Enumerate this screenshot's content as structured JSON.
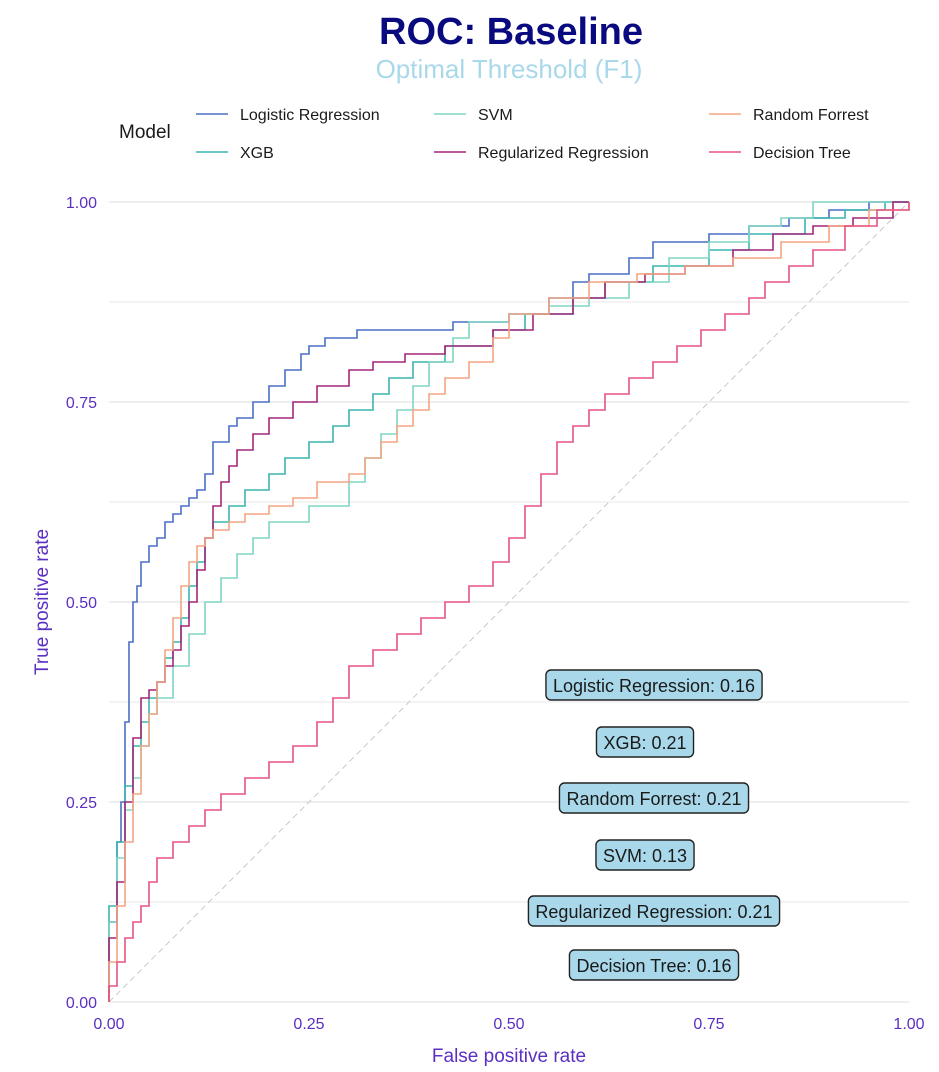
{
  "chart_data": {
    "type": "line",
    "title": "ROC: Baseline",
    "subtitle": "Optimal Threshold (F1)",
    "xlabel": "False positive rate",
    "ylabel": "True positive rate",
    "xlim": [
      0,
      1
    ],
    "ylim": [
      0,
      1
    ],
    "x_ticks": [
      "0.00",
      "0.25",
      "0.50",
      "0.75",
      "1.00"
    ],
    "y_ticks": [
      "0.00",
      "0.25",
      "0.50",
      "0.75",
      "1.00"
    ],
    "grid": true,
    "legend": {
      "title": "Model",
      "position": "top",
      "entries": [
        "Logistic Regression",
        "XGB",
        "SVM",
        "Regularized Regression",
        "Random Forrest",
        "Decision Tree"
      ]
    },
    "colors": {
      "title": "#0a0a80",
      "subtitle": "#a8d8ea",
      "axis": "#5a2fc2",
      "grid": "#e3e3e3",
      "diagonal": "#c8c8c8",
      "annotation_fill": "#a8d8ea"
    },
    "series": [
      {
        "name": "Logistic Regression",
        "color": "#4a6fc7",
        "x": [
          0,
          0.0,
          0.01,
          0.01,
          0.015,
          0.02,
          0.025,
          0.03,
          0.035,
          0.04,
          0.05,
          0.06,
          0.07,
          0.08,
          0.09,
          0.1,
          0.11,
          0.12,
          0.13,
          0.15,
          0.16,
          0.18,
          0.2,
          0.22,
          0.24,
          0.25,
          0.27,
          0.31,
          0.43,
          0.5,
          0.55,
          0.58,
          0.6,
          0.65,
          0.68,
          0.75,
          0.8,
          0.85,
          0.9,
          0.95,
          0.99,
          1
        ],
        "y": [
          0,
          0.1,
          0.15,
          0.2,
          0.25,
          0.35,
          0.45,
          0.5,
          0.52,
          0.55,
          0.57,
          0.58,
          0.6,
          0.61,
          0.62,
          0.63,
          0.64,
          0.66,
          0.7,
          0.72,
          0.73,
          0.75,
          0.77,
          0.79,
          0.81,
          0.82,
          0.83,
          0.84,
          0.85,
          0.86,
          0.88,
          0.9,
          0.91,
          0.93,
          0.95,
          0.96,
          0.97,
          0.98,
          0.99,
          1,
          1,
          1
        ]
      },
      {
        "name": "XGB",
        "color": "#3ab5b0",
        "x": [
          0,
          0.0,
          0.01,
          0.02,
          0.03,
          0.04,
          0.05,
          0.06,
          0.07,
          0.08,
          0.09,
          0.1,
          0.11,
          0.12,
          0.13,
          0.15,
          0.17,
          0.2,
          0.22,
          0.25,
          0.28,
          0.3,
          0.33,
          0.35,
          0.38,
          0.42,
          0.48,
          0.52,
          0.58,
          0.62,
          0.68,
          0.75,
          0.8,
          0.87,
          0.92,
          0.97,
          1
        ],
        "y": [
          0,
          0.12,
          0.2,
          0.27,
          0.32,
          0.35,
          0.38,
          0.4,
          0.43,
          0.45,
          0.48,
          0.52,
          0.55,
          0.58,
          0.6,
          0.62,
          0.64,
          0.66,
          0.68,
          0.7,
          0.72,
          0.74,
          0.76,
          0.78,
          0.8,
          0.82,
          0.84,
          0.86,
          0.88,
          0.9,
          0.92,
          0.94,
          0.96,
          0.98,
          0.99,
          1,
          1
        ]
      },
      {
        "name": "SVM",
        "color": "#7fd6c2",
        "x": [
          0,
          0.0,
          0.01,
          0.02,
          0.03,
          0.04,
          0.05,
          0.06,
          0.08,
          0.1,
          0.12,
          0.14,
          0.16,
          0.18,
          0.2,
          0.25,
          0.3,
          0.32,
          0.34,
          0.36,
          0.38,
          0.4,
          0.43,
          0.45,
          0.5,
          0.55,
          0.6,
          0.65,
          0.7,
          0.75,
          0.8,
          0.84,
          0.88,
          0.95,
          1
        ],
        "y": [
          0,
          0.1,
          0.18,
          0.24,
          0.28,
          0.32,
          0.36,
          0.38,
          0.42,
          0.46,
          0.5,
          0.53,
          0.56,
          0.58,
          0.6,
          0.62,
          0.65,
          0.68,
          0.71,
          0.74,
          0.77,
          0.8,
          0.83,
          0.85,
          0.86,
          0.87,
          0.88,
          0.9,
          0.93,
          0.95,
          0.97,
          0.98,
          1,
          1,
          1
        ]
      },
      {
        "name": "Regularized Regression",
        "color": "#a3267a",
        "x": [
          0,
          0.0,
          0.01,
          0.02,
          0.03,
          0.04,
          0.05,
          0.06,
          0.07,
          0.08,
          0.09,
          0.1,
          0.11,
          0.12,
          0.13,
          0.14,
          0.15,
          0.16,
          0.18,
          0.2,
          0.23,
          0.26,
          0.3,
          0.33,
          0.37,
          0.42,
          0.48,
          0.53,
          0.58,
          0.62,
          0.67,
          0.72,
          0.78,
          0.83,
          0.88,
          0.93,
          0.98,
          1
        ],
        "y": [
          0,
          0.08,
          0.15,
          0.25,
          0.33,
          0.38,
          0.39,
          0.4,
          0.42,
          0.44,
          0.47,
          0.5,
          0.54,
          0.58,
          0.62,
          0.65,
          0.67,
          0.69,
          0.71,
          0.73,
          0.75,
          0.77,
          0.79,
          0.8,
          0.81,
          0.82,
          0.84,
          0.86,
          0.88,
          0.9,
          0.91,
          0.92,
          0.94,
          0.96,
          0.97,
          0.98,
          1,
          1
        ]
      },
      {
        "name": "Random Forrest",
        "color": "#f4a582",
        "x": [
          0,
          0.0,
          0.01,
          0.02,
          0.03,
          0.04,
          0.05,
          0.06,
          0.07,
          0.08,
          0.09,
          0.1,
          0.11,
          0.12,
          0.13,
          0.15,
          0.17,
          0.2,
          0.23,
          0.26,
          0.3,
          0.32,
          0.34,
          0.36,
          0.38,
          0.4,
          0.42,
          0.45,
          0.48,
          0.5,
          0.55,
          0.6,
          0.66,
          0.72,
          0.78,
          0.84,
          0.9,
          0.95,
          1
        ],
        "y": [
          0,
          0.05,
          0.12,
          0.2,
          0.26,
          0.32,
          0.36,
          0.4,
          0.44,
          0.48,
          0.52,
          0.55,
          0.57,
          0.58,
          0.59,
          0.6,
          0.61,
          0.62,
          0.63,
          0.65,
          0.66,
          0.68,
          0.7,
          0.72,
          0.74,
          0.76,
          0.78,
          0.8,
          0.83,
          0.86,
          0.88,
          0.9,
          0.91,
          0.92,
          0.93,
          0.95,
          0.97,
          0.99,
          1
        ]
      },
      {
        "name": "Decision Tree",
        "color": "#e75480",
        "x": [
          0,
          0.0,
          0.01,
          0.02,
          0.03,
          0.04,
          0.05,
          0.06,
          0.08,
          0.1,
          0.12,
          0.14,
          0.17,
          0.2,
          0.23,
          0.26,
          0.28,
          0.3,
          0.33,
          0.36,
          0.39,
          0.42,
          0.45,
          0.48,
          0.5,
          0.52,
          0.54,
          0.56,
          0.58,
          0.6,
          0.62,
          0.65,
          0.68,
          0.71,
          0.74,
          0.77,
          0.8,
          0.82,
          0.85,
          0.88,
          0.92,
          0.96,
          1
        ],
        "y": [
          0,
          0.02,
          0.05,
          0.08,
          0.1,
          0.12,
          0.15,
          0.18,
          0.2,
          0.22,
          0.24,
          0.26,
          0.28,
          0.3,
          0.32,
          0.35,
          0.38,
          0.42,
          0.44,
          0.46,
          0.48,
          0.5,
          0.52,
          0.55,
          0.58,
          0.62,
          0.66,
          0.7,
          0.72,
          0.74,
          0.76,
          0.78,
          0.8,
          0.82,
          0.84,
          0.86,
          0.88,
          0.9,
          0.92,
          0.94,
          0.97,
          0.99,
          1
        ]
      }
    ],
    "annotations": [
      {
        "label": "Logistic Regression: 0.16"
      },
      {
        "label": "XGB: 0.21"
      },
      {
        "label": "Random Forrest: 0.21"
      },
      {
        "label": "SVM: 0.13"
      },
      {
        "label": "Regularized Regression: 0.21"
      },
      {
        "label": "Decision Tree: 0.16"
      }
    ]
  }
}
